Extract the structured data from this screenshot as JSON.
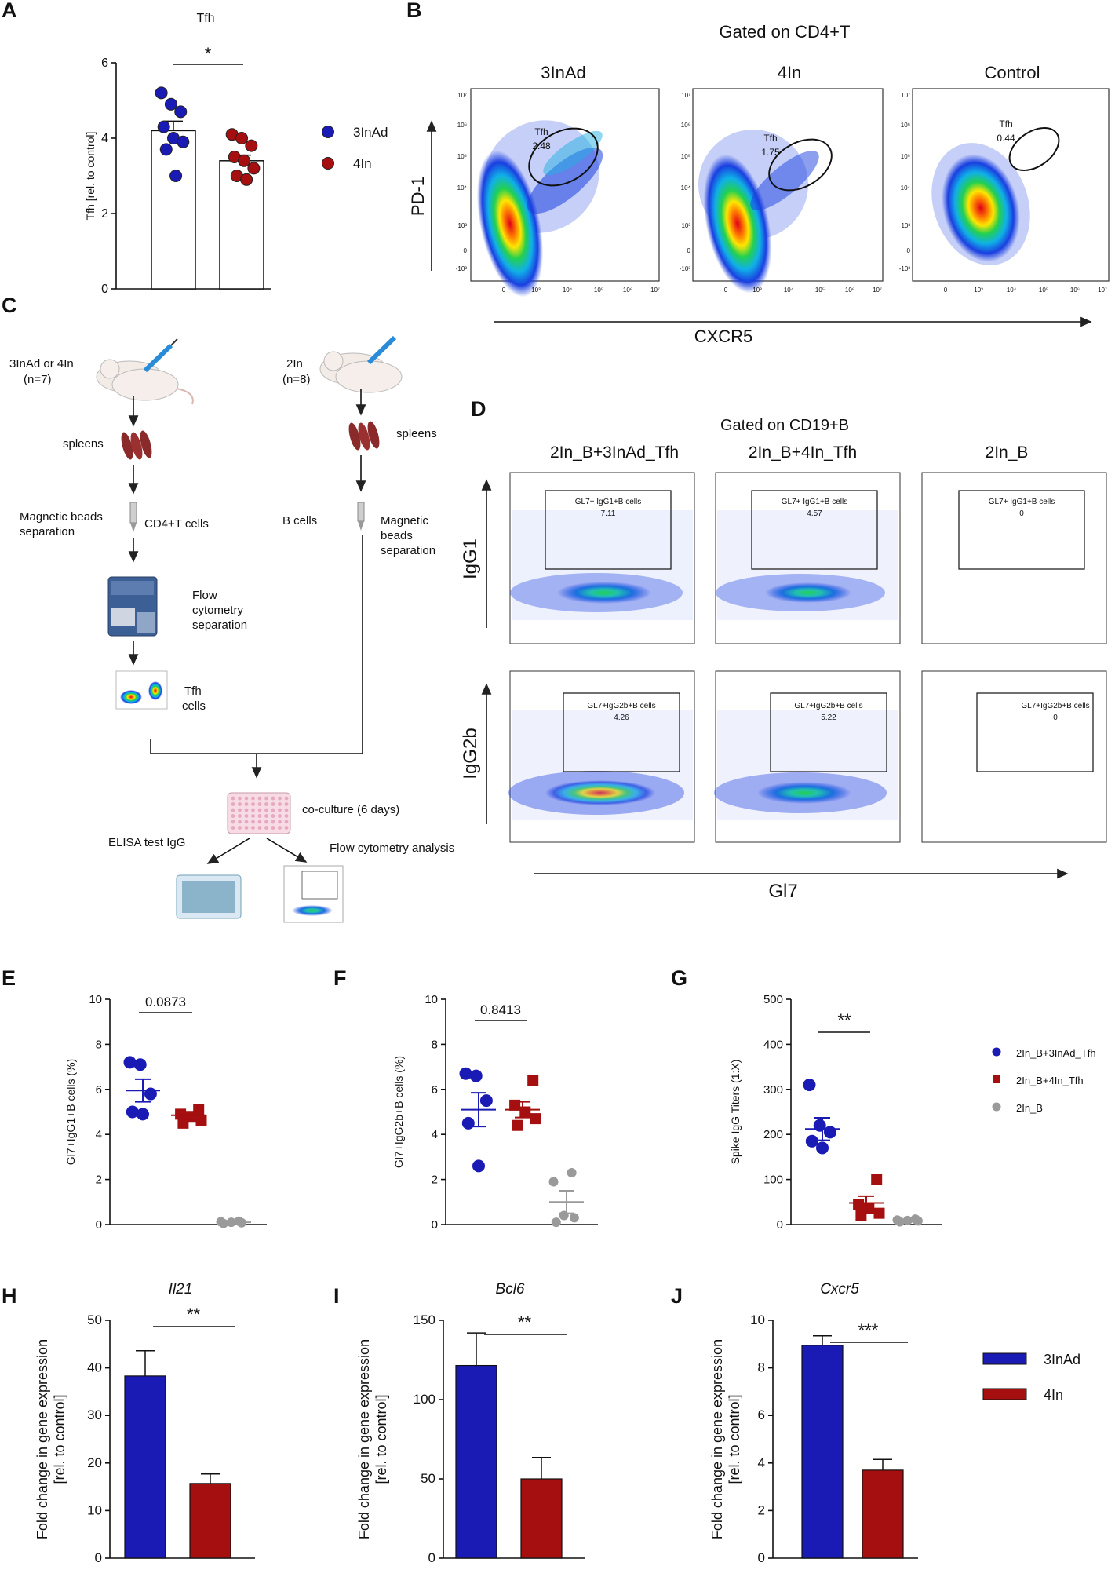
{
  "colors": {
    "blue": "#1a1ab4",
    "red": "#a50f10",
    "grey": "#9a9a9a"
  },
  "panel_labels": [
    "A",
    "B",
    "C",
    "D",
    "E",
    "F",
    "G",
    "H",
    "I",
    "J"
  ],
  "panelB": {
    "title": "Gated on CD4+T",
    "samples": [
      {
        "name": "3InAd",
        "gate_label": "Tfh",
        "gate_value": "2.48"
      },
      {
        "name": "4In",
        "gate_label": "Tfh",
        "gate_value": "1.75"
      },
      {
        "name": "Control",
        "gate_label": "Tfh",
        "gate_value": "0.44"
      }
    ],
    "xlabel": "CXCR5",
    "ylabel": "PD-1",
    "x_ticks": [
      "0",
      "10³",
      "10⁴",
      "10⁵",
      "10⁶",
      "10⁷"
    ],
    "y_ticks": [
      "10⁷",
      "10⁶",
      "10⁵",
      "10⁴",
      "10³",
      "0",
      "-10³"
    ]
  },
  "panelC": {
    "left_group": "3InAd or 4In\n(n=7)",
    "left_group_l1": "3InAd or 4In",
    "left_group_l2": "(n=7)",
    "right_group_l1": "2In",
    "right_group_l2": "(n=8)",
    "spleens_left": "spleens",
    "spleens_right": "spleens",
    "mag_left_l1": "Magnetic beads",
    "mag_left_l2": "separation",
    "cd4": "CD4+T cells",
    "b_cells": "B cells",
    "mag_right_l1": "Magnetic",
    "mag_right_l2": "beads",
    "mag_right_l3": "separation",
    "flow_l1": "Flow",
    "flow_l2": "cytometry",
    "flow_l3": "separation",
    "tfh_l1": "Tfh",
    "tfh_l2": "cells",
    "coculture": "co-culture (6 days)",
    "elisa": "ELISA test IgG",
    "flow_analysis": "Flow cytometry analysis"
  },
  "panelD": {
    "title": "Gated on CD19+B",
    "columns": [
      "2In_B+3InAd_Tfh",
      "2In_B+4In_Tfh",
      "2In_B"
    ],
    "row_labels": [
      "IgG1",
      "IgG2b"
    ],
    "xlabel": "Gl7",
    "gate_names": [
      "GL7+ IgG1+B cells",
      "GL7+IgG2b+B cells"
    ],
    "values": [
      [
        "7.11",
        "4.57",
        "0"
      ],
      [
        "4.26",
        "5.22",
        "0"
      ]
    ]
  },
  "chart_data": [
    {
      "panel": "A",
      "type": "bar",
      "title": "Tfh",
      "ylabel": "Tfh [rel. to control]",
      "ylim": [
        0,
        6
      ],
      "yticks": [
        "0",
        "2",
        "4",
        "6"
      ],
      "categories": [
        "3InAd",
        "4In"
      ],
      "values": [
        4.2,
        3.4
      ],
      "errors": [
        0.25,
        0.15
      ],
      "points": [
        [
          5.2,
          4.9,
          4.7,
          4.3,
          4.0,
          3.9,
          3.7,
          3.0
        ],
        [
          4.1,
          4.0,
          3.8,
          3.5,
          3.4,
          3.2,
          3.0,
          2.9
        ]
      ],
      "significance": "*",
      "legend": [
        "3InAd",
        "4In"
      ]
    },
    {
      "panel": "E",
      "type": "scatter",
      "ylabel": "Gl7+IgG1+B cells (%)",
      "ylim": [
        0,
        10
      ],
      "yticks": [
        "0",
        "2",
        "4",
        "6",
        "8",
        "10"
      ],
      "groups": [
        "2In_B+3InAd_Tfh",
        "2In_B+4In_Tfh",
        "2In_B"
      ],
      "points": [
        [
          7.2,
          7.1,
          5.8,
          5.0,
          4.9
        ],
        [
          5.1,
          4.9,
          4.8,
          4.6,
          4.5
        ],
        [
          0.15,
          0.12,
          0.1,
          0.08,
          0.05
        ]
      ],
      "means": [
        5.95,
        4.85,
        0.1
      ],
      "errors": [
        0.5,
        0.15,
        0.03
      ],
      "significance": "0.0873"
    },
    {
      "panel": "F",
      "type": "scatter",
      "ylabel": "Gl7+IgG2b+B cells (%)",
      "ylim": [
        0,
        10
      ],
      "yticks": [
        "0",
        "2",
        "4",
        "6",
        "8",
        "10"
      ],
      "groups": [
        "2In_B+3InAd_Tfh",
        "2In_B+4In_Tfh",
        "2In_B"
      ],
      "points": [
        [
          6.7,
          6.6,
          5.5,
          4.5,
          2.6
        ],
        [
          6.4,
          5.3,
          5.0,
          4.7,
          4.4
        ],
        [
          2.3,
          1.9,
          0.4,
          0.3,
          0.1
        ]
      ],
      "means": [
        5.1,
        5.1,
        1.0
      ],
      "errors": [
        0.75,
        0.35,
        0.5
      ],
      "significance": "0.8413"
    },
    {
      "panel": "G",
      "type": "scatter",
      "ylabel": "Spike IgG Titers (1:X)",
      "ylim": [
        0,
        500
      ],
      "yticks": [
        "0",
        "100",
        "200",
        "300",
        "400",
        "500"
      ],
      "groups": [
        "2In_B+3InAd_Tfh",
        "2In_B+4In_Tfh",
        "2In_B"
      ],
      "points": [
        [
          310,
          220,
          205,
          185,
          170
        ],
        [
          100,
          45,
          35,
          25,
          20
        ],
        [
          12,
          10,
          9,
          8,
          6
        ]
      ],
      "means": [
        212,
        48
      ],
      "errors": [
        25,
        15
      ],
      "significance": "**",
      "legend": [
        "2In_B+3InAd_Tfh",
        "2In_B+4In_Tfh",
        "2In_B"
      ]
    },
    {
      "panel": "H",
      "type": "bar",
      "title": "Il21",
      "ylabel": "Fold change in gene expression\n[rel. to control]",
      "ylim": [
        0,
        50
      ],
      "yticks": [
        "0",
        "10",
        "20",
        "30",
        "40",
        "50"
      ],
      "categories": [
        "3InAd",
        "4In"
      ],
      "values": [
        38.3,
        15.7
      ],
      "errors": [
        5.3,
        2.0
      ],
      "significance": "**"
    },
    {
      "panel": "I",
      "type": "bar",
      "title": "Bcl6",
      "ylabel": "Fold change in gene expression\n[rel. to control]",
      "ylim": [
        0,
        150
      ],
      "yticks": [
        "0",
        "50",
        "100",
        "150"
      ],
      "categories": [
        "3InAd",
        "4In"
      ],
      "values": [
        121.5,
        50.0
      ],
      "errors": [
        20.5,
        13.5
      ],
      "significance": "**"
    },
    {
      "panel": "J",
      "type": "bar",
      "title": "Cxcr5",
      "ylabel": "Fold change in gene expression\n[rel. to control]",
      "ylim": [
        0,
        10
      ],
      "yticks": [
        "0",
        "2",
        "4",
        "6",
        "8",
        "10"
      ],
      "categories": [
        "3InAd",
        "4In"
      ],
      "values": [
        8.95,
        3.7
      ],
      "errors": [
        0.4,
        0.45
      ],
      "significance": "***",
      "legend": [
        "3InAd",
        "4In"
      ]
    }
  ]
}
